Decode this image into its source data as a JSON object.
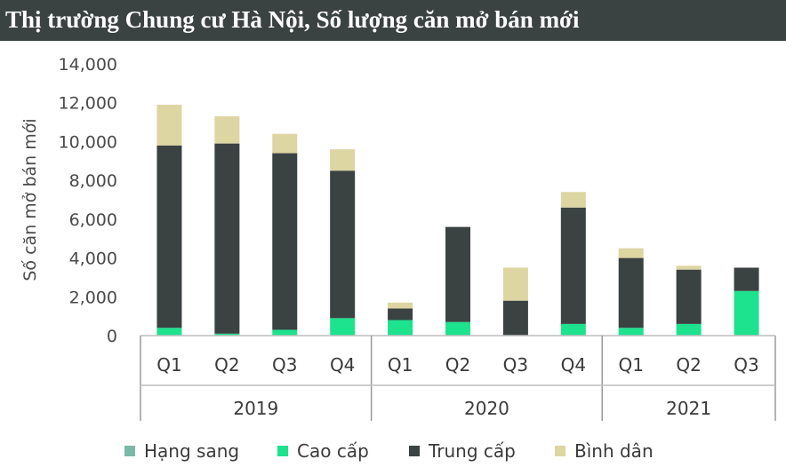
{
  "chart_data": {
    "type": "bar",
    "stacked": true,
    "title": "Thị trường Chung cư Hà Nội, Số lượng căn mở bán mới",
    "ylabel": "Số căn mở bán mới",
    "ylim": [
      0,
      14000
    ],
    "yticks": [
      "0",
      "2,000",
      "4,000",
      "6,000",
      "8,000",
      "10,000",
      "12,000",
      "14,000"
    ],
    "groups": [
      {
        "year": "2019",
        "quarters": [
          "Q1",
          "Q2",
          "Q3",
          "Q4"
        ]
      },
      {
        "year": "2020",
        "quarters": [
          "Q1",
          "Q2",
          "Q3",
          "Q4"
        ]
      },
      {
        "year": "2021",
        "quarters": [
          "Q1",
          "Q2",
          "Q3"
        ]
      }
    ],
    "series": [
      {
        "name": "Hạng sang",
        "color": "#7ab8a8",
        "values": [
          0,
          0,
          0,
          0,
          0,
          0,
          0,
          0,
          0,
          0,
          0
        ]
      },
      {
        "name": "Cao cấp",
        "color": "#1de28e",
        "values": [
          400,
          100,
          300,
          900,
          800,
          700,
          0,
          600,
          400,
          600,
          2300
        ]
      },
      {
        "name": "Trung cấp",
        "color": "#3b4242",
        "values": [
          9400,
          9800,
          9100,
          7600,
          600,
          4900,
          1800,
          6000,
          3600,
          2800,
          1200
        ]
      },
      {
        "name": "Bình dân",
        "color": "#ddd5a2",
        "values": [
          2100,
          1400,
          1000,
          1100,
          300,
          0,
          1700,
          800,
          500,
          200,
          0
        ]
      }
    ]
  }
}
